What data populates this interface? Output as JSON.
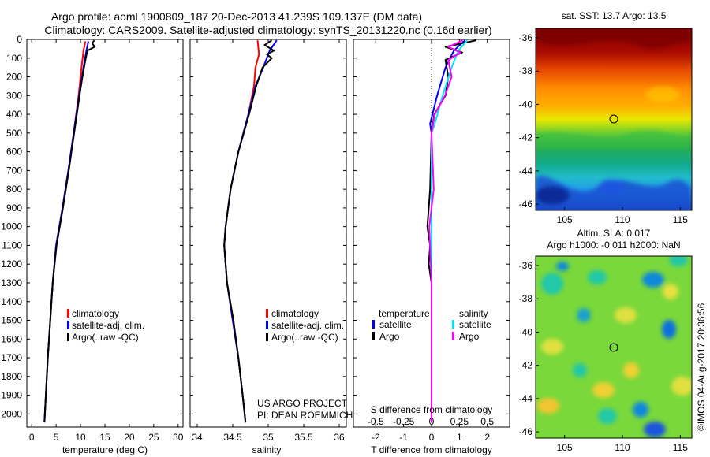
{
  "title": {
    "line1": "Argo profile: aoml 1900809_187 20-Dec-2013 41.239S 109.137E (DM data)",
    "line2": "Climatology: CARS2009. Satellite-adjusted climatology: synTS_20131220.nc (0.16d earlier)"
  },
  "colors": {
    "climatology": "#ff0000",
    "satellite": "#0000ff",
    "argo": "#000000",
    "salinity_satellite": "#00e5ff",
    "salinity_argo": "#ff00ff"
  },
  "chart_data": [
    {
      "type": "line",
      "panel": "temperature",
      "xlabel": "temperature (deg C)",
      "ylabel": "",
      "xlim": [
        -1,
        31
      ],
      "ylim": [
        2070,
        0
      ],
      "xticks": [
        0,
        5,
        10,
        15,
        20,
        25,
        30
      ],
      "yticks": [
        0,
        100,
        200,
        300,
        400,
        500,
        600,
        700,
        800,
        900,
        1000,
        1100,
        1200,
        1300,
        1400,
        1500,
        1600,
        1700,
        1800,
        1900,
        2000
      ],
      "legend": [
        "climatology",
        "satellite-adj. clim.",
        "Argo(..raw -QC)"
      ],
      "series": [
        {
          "name": "climatology",
          "color": "#ff0000",
          "points": [
            [
              11.0,
              10
            ],
            [
              10.6,
              60
            ],
            [
              10.2,
              150
            ],
            [
              9.6,
              300
            ],
            [
              8.6,
              500
            ],
            [
              7.5,
              700
            ],
            [
              6.3,
              900
            ],
            [
              5.0,
              1100
            ],
            [
              4.3,
              1300
            ],
            [
              3.8,
              1500
            ],
            [
              3.3,
              1700
            ],
            [
              2.9,
              1900
            ],
            [
              2.6,
              2045
            ]
          ]
        },
        {
          "name": "satellite-adj. clim.",
          "color": "#0000ff",
          "points": [
            [
              11.6,
              10
            ],
            [
              11.2,
              60
            ],
            [
              10.6,
              150
            ],
            [
              9.7,
              300
            ],
            [
              8.6,
              500
            ],
            [
              7.5,
              700
            ],
            [
              6.3,
              900
            ],
            [
              5.0,
              1100
            ],
            [
              4.3,
              1300
            ],
            [
              3.8,
              1500
            ],
            [
              3.3,
              1700
            ],
            [
              2.9,
              1900
            ],
            [
              2.6,
              2045
            ]
          ]
        },
        {
          "name": "Argo(..raw -QC)",
          "color": "#000000",
          "points": [
            [
              12.8,
              5
            ],
            [
              12.4,
              20
            ],
            [
              12.9,
              40
            ],
            [
              11.4,
              60
            ],
            [
              11.0,
              110
            ],
            [
              10.5,
              180
            ],
            [
              9.8,
              300
            ],
            [
              8.7,
              500
            ],
            [
              7.6,
              700
            ],
            [
              6.4,
              900
            ],
            [
              5.1,
              1100
            ],
            [
              4.3,
              1300
            ],
            [
              3.8,
              1500
            ],
            [
              3.3,
              1700
            ],
            [
              2.9,
              1900
            ],
            [
              2.6,
              2045
            ]
          ]
        }
      ]
    },
    {
      "type": "line",
      "panel": "salinity",
      "xlabel": "salinity",
      "xlim": [
        33.9,
        36.1
      ],
      "ylim": [
        2070,
        0
      ],
      "xticks": [
        34,
        34.5,
        35,
        35.5,
        36
      ],
      "legend": [
        "climatology",
        "satellite-adj. clim.",
        "Argo(..raw -QC)"
      ],
      "annotation": [
        "US ARGO PROJECT",
        "PI: DEAN ROEMMICH"
      ],
      "series": [
        {
          "name": "climatology",
          "color": "#ff0000",
          "points": [
            [
              34.85,
              5
            ],
            [
              34.87,
              80
            ],
            [
              34.82,
              150
            ],
            [
              34.8,
              250
            ],
            [
              34.72,
              400
            ],
            [
              34.58,
              600
            ],
            [
              34.47,
              800
            ],
            [
              34.4,
              1000
            ],
            [
              34.38,
              1100
            ],
            [
              34.42,
              1300
            ],
            [
              34.5,
              1500
            ],
            [
              34.58,
              1700
            ],
            [
              34.64,
              1900
            ],
            [
              34.68,
              2045
            ]
          ]
        },
        {
          "name": "satellite-adj. clim.",
          "color": "#0000ff",
          "points": [
            [
              35.12,
              5
            ],
            [
              35.02,
              60
            ],
            [
              34.93,
              150
            ],
            [
              34.82,
              250
            ],
            [
              34.72,
              400
            ],
            [
              34.58,
              600
            ],
            [
              34.47,
              800
            ],
            [
              34.4,
              1000
            ],
            [
              34.38,
              1100
            ],
            [
              34.42,
              1300
            ],
            [
              34.5,
              1500
            ],
            [
              34.58,
              1700
            ],
            [
              34.64,
              1900
            ],
            [
              34.68,
              2045
            ]
          ]
        },
        {
          "name": "Argo(..raw -QC)",
          "color": "#000000",
          "points": [
            [
              35.05,
              5
            ],
            [
              34.95,
              30
            ],
            [
              35.08,
              60
            ],
            [
              34.98,
              80
            ],
            [
              35.05,
              100
            ],
            [
              34.92,
              150
            ],
            [
              34.83,
              250
            ],
            [
              34.73,
              400
            ],
            [
              34.58,
              600
            ],
            [
              34.47,
              800
            ],
            [
              34.4,
              1000
            ],
            [
              34.38,
              1100
            ],
            [
              34.42,
              1300
            ],
            [
              34.51,
              1500
            ],
            [
              34.58,
              1700
            ],
            [
              34.64,
              1900
            ],
            [
              34.68,
              2045
            ]
          ]
        }
      ]
    },
    {
      "type": "line",
      "panel": "difference",
      "xlabel": "T difference from climatology",
      "xlabel2": "S difference from climatology",
      "xlim": [
        -2.8,
        2.8
      ],
      "ylim": [
        2070,
        0
      ],
      "xticks": [
        -2,
        -1,
        0,
        1,
        2
      ],
      "xticks_top": [
        -0.5,
        -0.25,
        0,
        0.25,
        0.5
      ],
      "legend_titles": [
        "temperature",
        "salinity"
      ],
      "legend": [
        "satellite",
        "Argo",
        "satellite",
        "Argo"
      ],
      "series": [
        {
          "name": "T satellite",
          "color": "#0000ff",
          "points": [
            [
              1.2,
              5
            ],
            [
              0.8,
              60
            ],
            [
              0.5,
              150
            ],
            [
              0.2,
              300
            ],
            [
              -0.05,
              450
            ],
            [
              0,
              500
            ],
            [
              0,
              2045
            ]
          ]
        },
        {
          "name": "T Argo",
          "color": "#000000",
          "points": [
            [
              1.6,
              5
            ],
            [
              0.5,
              40
            ],
            [
              1.1,
              70
            ],
            [
              0.5,
              110
            ],
            [
              0.6,
              200
            ],
            [
              0.5,
              300
            ],
            [
              0.1,
              400
            ],
            [
              0,
              500
            ],
            [
              -0.05,
              800
            ],
            [
              -0.1,
              900
            ],
            [
              -0.15,
              1000
            ],
            [
              -0.05,
              1100
            ],
            [
              -0.1,
              1200
            ],
            [
              0,
              1300
            ],
            [
              0,
              2045
            ]
          ]
        },
        {
          "name": "S satellite",
          "color": "#00e5ff",
          "points": [
            [
              0.32,
              5
            ],
            [
              0.24,
              60
            ],
            [
              0.18,
              150
            ],
            [
              0.1,
              300
            ],
            [
              0.03,
              450
            ],
            [
              0,
              500
            ],
            [
              0,
              2045
            ]
          ]
        },
        {
          "name": "S Argo",
          "color": "#ff00ff",
          "points": [
            [
              0.28,
              5
            ],
            [
              0.15,
              40
            ],
            [
              0.26,
              70
            ],
            [
              0.15,
              110
            ],
            [
              0.18,
              200
            ],
            [
              0.12,
              300
            ],
            [
              0.03,
              400
            ],
            [
              0,
              500
            ],
            [
              0.02,
              800
            ],
            [
              -0.02,
              1000
            ],
            [
              0,
              1300
            ],
            [
              0,
              2045
            ]
          ]
        }
      ]
    }
  ],
  "maps": {
    "sst": {
      "title": "sat. SST: 13.7  Argo: 13.5",
      "yticks": [
        -36,
        -38,
        -40,
        -42,
        -44,
        -46
      ],
      "xticks": [
        105,
        110,
        115
      ]
    },
    "sla": {
      "title1": "Altim. SLA: 0.017",
      "title2": "Argo h1000: -0.011  h2000: NaN",
      "yticks": [
        -36,
        -38,
        -40,
        -42,
        -44,
        -46
      ],
      "xticks": [
        105,
        110,
        115
      ]
    }
  },
  "footer": "©IMOS 04-Aug-2017 20:36:56"
}
